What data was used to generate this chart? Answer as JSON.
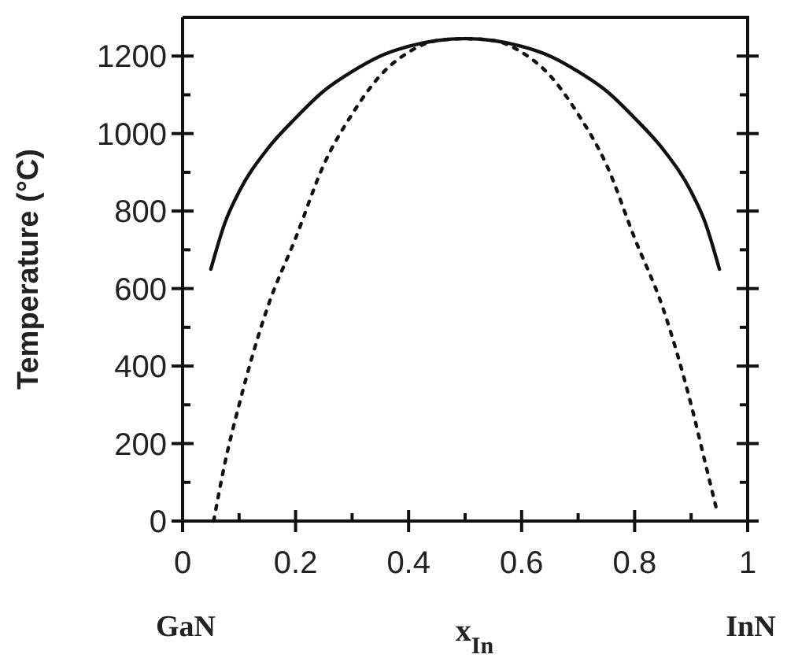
{
  "chart_data": {
    "type": "line",
    "xlabel": "x$_{In}$",
    "ylabel": "Temperature (°C)",
    "annotations": [
      "GaN",
      "InN"
    ],
    "xlim": [
      0,
      1
    ],
    "xticks": [
      0,
      0.2,
      0.4,
      0.6,
      0.8,
      1
    ],
    "ylim": [
      0,
      1300
    ],
    "yticks": [
      0,
      200,
      400,
      600,
      800,
      1000,
      1200
    ],
    "grid": false,
    "series": [
      {
        "color": "#111111",
        "line_style": "solid",
        "x": [
          0.05,
          0.075,
          0.1,
          0.15,
          0.2,
          0.25,
          0.3,
          0.35,
          0.4,
          0.45,
          0.5,
          0.55,
          0.6,
          0.65,
          0.7,
          0.75,
          0.8,
          0.85,
          0.9,
          0.925,
          0.95
        ],
        "values": [
          650,
          770,
          850,
          960,
          1040,
          1110,
          1160,
          1200,
          1225,
          1240,
          1245,
          1240,
          1225,
          1200,
          1160,
          1110,
          1040,
          960,
          850,
          770,
          650
        ]
      },
      {
        "color": "#111111",
        "line_style": "dotted",
        "x": [
          0.055,
          0.075,
          0.1,
          0.15,
          0.2,
          0.25,
          0.3,
          0.35,
          0.4,
          0.45,
          0.5,
          0.55,
          0.6,
          0.65,
          0.7,
          0.75,
          0.8,
          0.85,
          0.9,
          0.925,
          0.945
        ],
        "values": [
          0,
          150,
          300,
          550,
          730,
          920,
          1050,
          1150,
          1210,
          1240,
          1245,
          1240,
          1210,
          1150,
          1050,
          920,
          730,
          550,
          300,
          150,
          30
        ]
      }
    ]
  }
}
